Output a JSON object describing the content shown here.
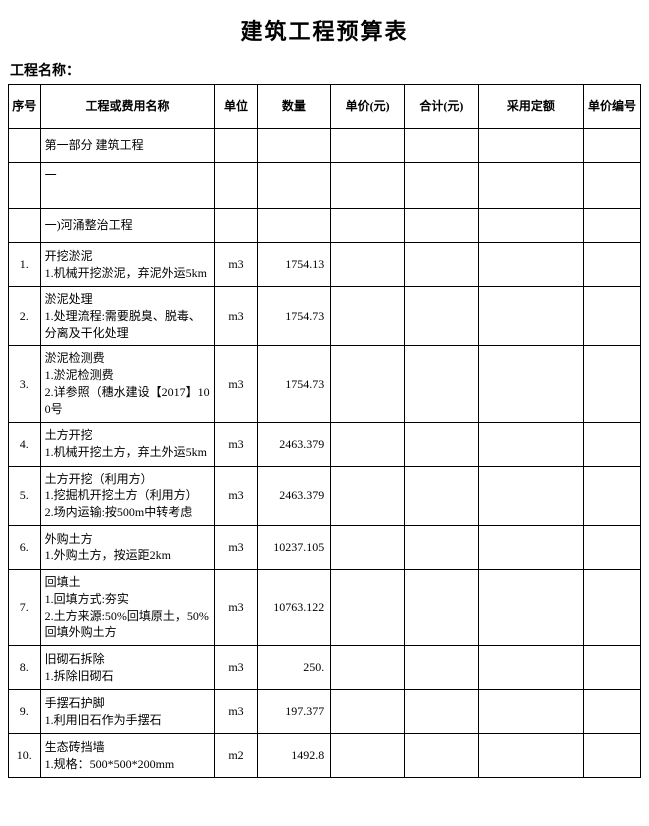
{
  "title": "建筑工程预算表",
  "project_label": "工程名称：",
  "headers": {
    "seq": "序号",
    "desc": "工程或费用名称",
    "unit": "单位",
    "qty": "数量",
    "price": "单价(元)",
    "total": "合计(元)",
    "norm": "采用定额",
    "code": "单价编号"
  },
  "section1": "第一部分 建筑工程",
  "dash": "一",
  "subhead1": "一)河涌整治工程",
  "rows": [
    {
      "seq": "1.",
      "desc": "开挖淤泥\n1.机械开挖淤泥，弃泥外运5km",
      "unit": "m3",
      "qty": "1754.13",
      "cls": "item"
    },
    {
      "seq": "2.",
      "desc": "淤泥处理\n1.处理流程:需要脱臭、脱毒、分离及干化处理",
      "unit": "m3",
      "qty": "1754.73",
      "cls": "item-tall"
    },
    {
      "seq": "3.",
      "desc": "淤泥检测费\n1.淤泥检测费\n2.详参照（穗水建设【2017】100号",
      "unit": "m3",
      "qty": "1754.73",
      "cls": "item-tall2"
    },
    {
      "seq": "4.",
      "desc": "土方开挖\n1.机械开挖土方，弃土外运5km",
      "unit": "m3",
      "qty": "2463.379",
      "cls": "item"
    },
    {
      "seq": "5.",
      "desc": "土方开挖（利用方）\n1.挖掘机开挖土方（利用方）\n2.场内运输:按500m中转考虑",
      "unit": "m3",
      "qty": "2463.379",
      "cls": "item-tall"
    },
    {
      "seq": "6.",
      "desc": "外购土方\n1.外购土方，按运距2km",
      "unit": "m3",
      "qty": "10237.105",
      "cls": "item"
    },
    {
      "seq": "7.",
      "desc": "回填土\n1.回填方式:夯实\n2.土方来源:50%回填原土，50%回填外购土方",
      "unit": "m3",
      "qty": "10763.122",
      "cls": "item-tall3"
    },
    {
      "seq": "8.",
      "desc": "旧砌石拆除\n1.拆除旧砌石",
      "unit": "m3",
      "qty": "250.",
      "cls": "item"
    },
    {
      "seq": "9.",
      "desc": "手摆石护脚\n1.利用旧石作为手摆石",
      "unit": "m3",
      "qty": "197.377",
      "cls": "item"
    },
    {
      "seq": "10.",
      "desc": "生态砖挡墙\n1.规格：500*500*200mm",
      "unit": "m2",
      "qty": "1492.8",
      "cls": "item"
    }
  ]
}
